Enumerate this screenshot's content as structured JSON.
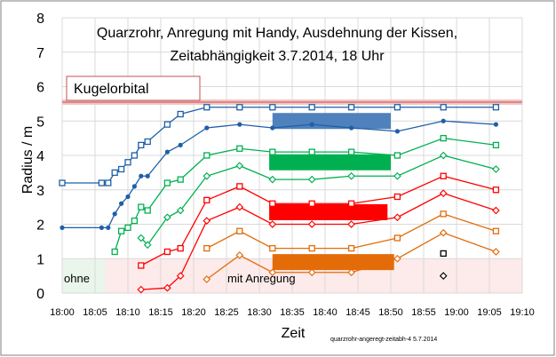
{
  "chart_data": {
    "type": "line",
    "title_line1": "Quarzrohr, Anregung mit Handy,  Ausdehnung der Kissen,",
    "title_line2": "Zeitabhängigkeit 3.7.2014, 18 Uhr",
    "xlabel": "Zeit",
    "ylabel": "Radius / m",
    "x_ticks": [
      "18:00",
      "18:05",
      "18:10",
      "18:15",
      "18:20",
      "18:25",
      "18:30",
      "18:35",
      "18:40",
      "18:45",
      "18:50",
      "18:55",
      "19:00",
      "19:05",
      "19:10"
    ],
    "y_ticks": [
      "0",
      "1",
      "2",
      "3",
      "4",
      "5",
      "6",
      "7",
      "8"
    ],
    "xlim": [
      0,
      70
    ],
    "ylim": [
      0,
      8
    ],
    "grid": true,
    "footer_note": "quarzrohr-angeregt-zeitabh-4  5.7.2014",
    "regions": {
      "ohne_label": "ohne",
      "mit_label": "mit   Anregung",
      "kugelorbital_label": "Kugelorbital",
      "kugelorbital_radius": 5.55
    },
    "bars": [
      {
        "color": "#4f81bd",
        "y": 5.0,
        "x_start": 32,
        "x_end": 50
      },
      {
        "color": "#00b050",
        "y": 3.8,
        "x_start": 31.5,
        "x_end": 50
      },
      {
        "color": "#ff0000",
        "y": 2.35,
        "x_start": 31.5,
        "x_end": 49.5
      },
      {
        "color": "#e36c09",
        "y": 0.9,
        "x_start": 32,
        "x_end": 50.5
      }
    ],
    "series": [
      {
        "color": "#1f5fa8",
        "marker": "square",
        "x": [
          0,
          6,
          7,
          8,
          9,
          10,
          11,
          12,
          13,
          16,
          18,
          22,
          27,
          32,
          38,
          44,
          51,
          58,
          66
        ],
        "y": [
          3.2,
          3.2,
          3.2,
          3.5,
          3.6,
          3.8,
          4.0,
          4.3,
          4.4,
          4.9,
          5.2,
          5.4,
          5.4,
          5.4,
          5.4,
          5.4,
          5.4,
          5.4,
          5.4
        ]
      },
      {
        "color": "#1f5fa8",
        "marker": "circle",
        "x": [
          0,
          6,
          7,
          8,
          9,
          10,
          11,
          12,
          13,
          16,
          18,
          22,
          27,
          32,
          38,
          44,
          51,
          58,
          66
        ],
        "y": [
          1.9,
          1.9,
          1.9,
          2.3,
          2.6,
          2.8,
          3.1,
          3.4,
          3.4,
          4.1,
          4.3,
          4.8,
          4.9,
          4.8,
          4.9,
          4.8,
          4.7,
          5.0,
          4.9
        ]
      },
      {
        "color": "#00b050",
        "marker": "square",
        "x": [
          8,
          9,
          10,
          11,
          12,
          13,
          16,
          18,
          22,
          27,
          32,
          38,
          44,
          51,
          58,
          66
        ],
        "y": [
          1.2,
          1.8,
          1.9,
          2.1,
          2.5,
          2.4,
          3.2,
          3.3,
          4.0,
          4.2,
          4.1,
          4.1,
          4.1,
          4.0,
          4.5,
          4.3
        ]
      },
      {
        "color": "#00b050",
        "marker": "diamond",
        "x": [
          12,
          13,
          16,
          18,
          22,
          27,
          32,
          38,
          44,
          51,
          58,
          66
        ],
        "y": [
          1.6,
          1.4,
          2.2,
          2.4,
          3.4,
          3.7,
          3.3,
          3.3,
          3.4,
          3.4,
          4.0,
          3.6
        ]
      },
      {
        "color": "#ff0000",
        "marker": "square",
        "x": [
          12,
          16,
          18,
          22,
          27,
          32,
          38,
          44,
          51,
          58,
          66
        ],
        "y": [
          0.8,
          1.2,
          1.3,
          2.7,
          3.1,
          2.6,
          2.6,
          2.6,
          2.8,
          3.4,
          3.0
        ]
      },
      {
        "color": "#ff0000",
        "marker": "diamond",
        "x": [
          12,
          16,
          18,
          22,
          27,
          32,
          38,
          44,
          51,
          58,
          66
        ],
        "y": [
          0.1,
          0.15,
          0.5,
          2.1,
          2.5,
          2.0,
          2.0,
          2.0,
          2.2,
          2.9,
          2.4
        ]
      },
      {
        "color": "#e36c09",
        "marker": "square",
        "x": [
          22,
          27,
          32,
          38,
          44,
          51,
          58,
          66
        ],
        "y": [
          1.3,
          1.8,
          1.3,
          1.3,
          1.3,
          1.6,
          2.3,
          1.8
        ]
      },
      {
        "color": "#e36c09",
        "marker": "diamond",
        "x": [
          22,
          27,
          32,
          38,
          44,
          51,
          58,
          66
        ],
        "y": [
          0.4,
          1.1,
          0.6,
          0.6,
          0.6,
          1.0,
          1.75,
          1.2
        ]
      },
      {
        "color": "#000000",
        "marker": "square",
        "x": [
          58
        ],
        "y": [
          1.15
        ]
      },
      {
        "color": "#000000",
        "marker": "diamond",
        "x": [
          58
        ],
        "y": [
          0.5
        ]
      }
    ]
  }
}
